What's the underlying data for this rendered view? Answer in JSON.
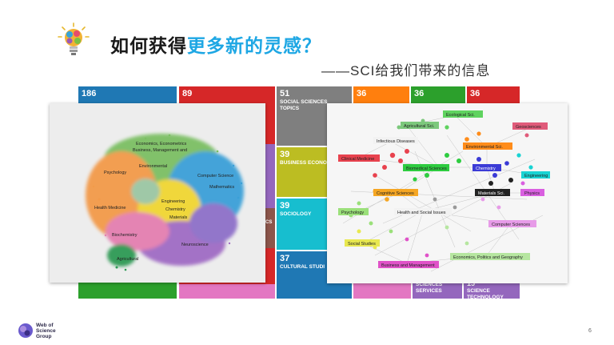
{
  "header": {
    "title_prefix": "如何获得",
    "title_highlight": "更多新的灵感？",
    "subtitle": "——SCI给我们带来的信息"
  },
  "tiles": [
    {
      "num": "186",
      "label": "",
      "color": "#1f78b4"
    },
    {
      "num": "89",
      "label": "",
      "color": "#d62728"
    },
    {
      "num": "51",
      "label": "SOCIAL SCIENCES TOPICS",
      "color": "#7f7f7f"
    },
    {
      "num": "36",
      "label": "",
      "color": "#ff7f0e"
    },
    {
      "num": "36",
      "label": "",
      "color": "#2ca02c"
    },
    {
      "num": "36",
      "label": "",
      "color": "#d62728"
    },
    {
      "num": "39",
      "label": "BUSINESS ECONO",
      "color": "#bcbd22"
    },
    {
      "num": "39",
      "label": "SOCIOLOGY",
      "color": "#17becf"
    },
    {
      "num": "37",
      "label": "CULTURAL STUDI",
      "color": "#1f78b4"
    },
    {
      "num": "",
      "label": "SCIENCES SERVICES",
      "color": "#9467bd"
    },
    {
      "num": "15",
      "label": "SCIENCE TECHNOLOGY OTHER",
      "color": "#9467bd"
    },
    {
      "num": "",
      "label": "CS",
      "color": "#8c564b"
    }
  ],
  "left_cluster_labels": [
    "Economics, Econometrics",
    "Business, Management and",
    "Psychology",
    "Computer Science",
    "Mathematics",
    "Health Medicine",
    "Engineering",
    "Chemistry",
    "Materials",
    "Biochemistry",
    "Neuroscience",
    "Environmental",
    "Agricultural"
  ],
  "network_nodes": [
    {
      "label": "Ecological Sci.",
      "color": "#5fd35f"
    },
    {
      "label": "Agricultural Sci.",
      "color": "#7cc87c"
    },
    {
      "label": "Geosciences",
      "color": "#e05b7a"
    },
    {
      "label": "Infectious Diseases",
      "color": "#f2f2f2"
    },
    {
      "label": "Environmental Sci.",
      "color": "#ff8c1a"
    },
    {
      "label": "Clinical Medicine",
      "color": "#e8424e"
    },
    {
      "label": "Biomedical Sciences",
      "color": "#2ecc40"
    },
    {
      "label": "Chemistry",
      "color": "#3b3bd6"
    },
    {
      "label": "Engineering",
      "color": "#19d3d3"
    },
    {
      "label": "Cognitive Sciences",
      "color": "#f5a623"
    },
    {
      "label": "Materials Sci.",
      "color": "#222222"
    },
    {
      "label": "Physics",
      "color": "#d95fe0"
    },
    {
      "label": "Psychology",
      "color": "#9be07a"
    },
    {
      "label": "Health and Social Issues",
      "color": "#f2f2f2"
    },
    {
      "label": "Computer Sciences",
      "color": "#e79be8"
    },
    {
      "label": "Social Studies",
      "color": "#e8e850"
    },
    {
      "label": "Economics, Politics and Geography",
      "color": "#b6e6a0"
    },
    {
      "label": "Business and Management",
      "color": "#e052c8"
    }
  ],
  "footer": {
    "brand_line1": "Web of",
    "brand_line2": "Science",
    "brand_line3": "Group",
    "page_number": "6"
  }
}
